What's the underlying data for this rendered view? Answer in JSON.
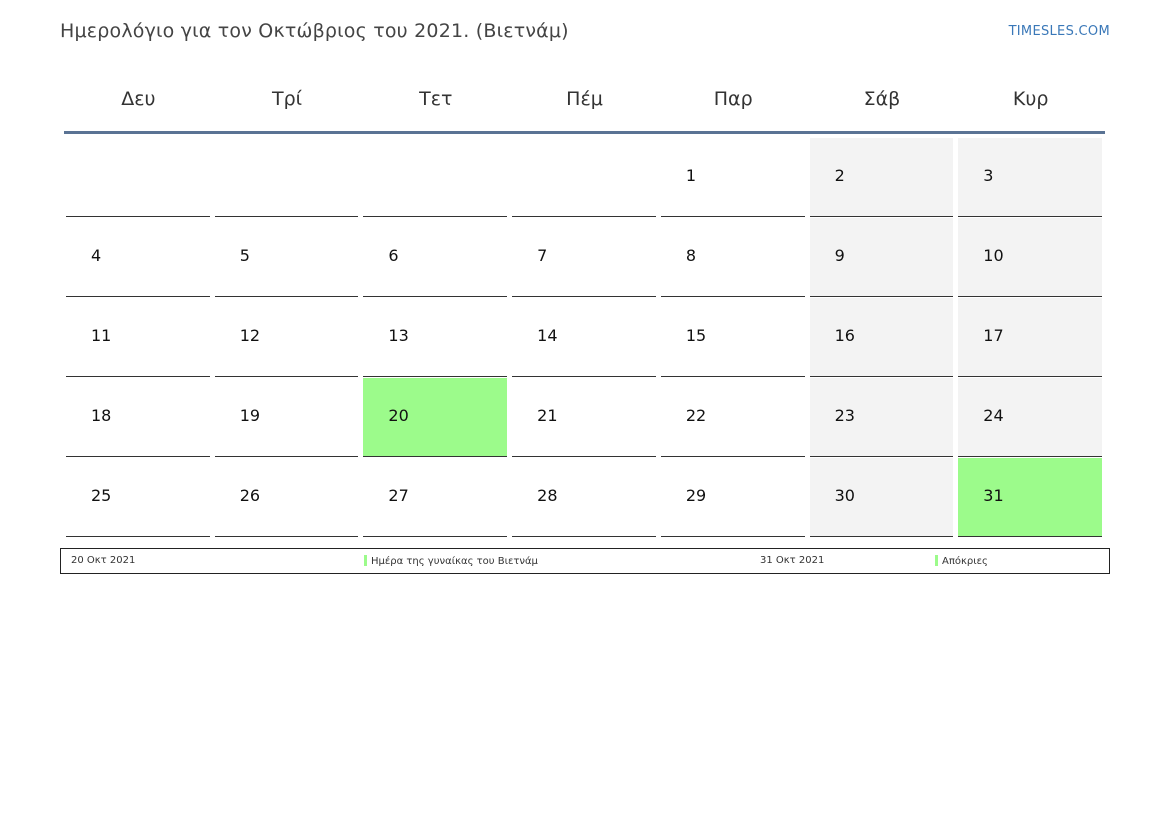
{
  "header": {
    "title": "Ημερολόγιο για τον Οκτώβριος του 2021. (Βιετνάμ)",
    "brand": "TIMESLES.COM"
  },
  "colors": {
    "holiday": "#9cfb8b",
    "weekend": "#f3f3f3",
    "accent": "#5a7394",
    "brand": "#3a78b8"
  },
  "weekdays": [
    "Δευ",
    "Τρί",
    "Τετ",
    "Πέμ",
    "Παρ",
    "Σάβ",
    "Κυρ"
  ],
  "weeks": [
    [
      {
        "day": "",
        "type": "empty"
      },
      {
        "day": "",
        "type": "empty"
      },
      {
        "day": "",
        "type": "empty"
      },
      {
        "day": "",
        "type": "empty"
      },
      {
        "day": "1",
        "type": "normal"
      },
      {
        "day": "2",
        "type": "weekend"
      },
      {
        "day": "3",
        "type": "weekend"
      }
    ],
    [
      {
        "day": "4",
        "type": "normal"
      },
      {
        "day": "5",
        "type": "normal"
      },
      {
        "day": "6",
        "type": "normal"
      },
      {
        "day": "7",
        "type": "normal"
      },
      {
        "day": "8",
        "type": "normal"
      },
      {
        "day": "9",
        "type": "weekend"
      },
      {
        "day": "10",
        "type": "weekend"
      }
    ],
    [
      {
        "day": "11",
        "type": "normal"
      },
      {
        "day": "12",
        "type": "normal"
      },
      {
        "day": "13",
        "type": "normal"
      },
      {
        "day": "14",
        "type": "normal"
      },
      {
        "day": "15",
        "type": "normal"
      },
      {
        "day": "16",
        "type": "weekend"
      },
      {
        "day": "17",
        "type": "weekend"
      }
    ],
    [
      {
        "day": "18",
        "type": "normal"
      },
      {
        "day": "19",
        "type": "normal"
      },
      {
        "day": "20",
        "type": "holiday"
      },
      {
        "day": "21",
        "type": "normal"
      },
      {
        "day": "22",
        "type": "normal"
      },
      {
        "day": "23",
        "type": "weekend"
      },
      {
        "day": "24",
        "type": "weekend"
      }
    ],
    [
      {
        "day": "25",
        "type": "normal"
      },
      {
        "day": "26",
        "type": "normal"
      },
      {
        "day": "27",
        "type": "normal"
      },
      {
        "day": "28",
        "type": "normal"
      },
      {
        "day": "29",
        "type": "normal"
      },
      {
        "day": "30",
        "type": "weekend"
      },
      {
        "day": "31",
        "type": "holiday"
      }
    ]
  ],
  "legend": [
    {
      "date": "20 Οκτ 2021",
      "name": "Ημέρα της γυναίκας του Βιετνάμ"
    },
    {
      "date": "31 Οκτ 2021",
      "name": "Απόκριες"
    }
  ]
}
